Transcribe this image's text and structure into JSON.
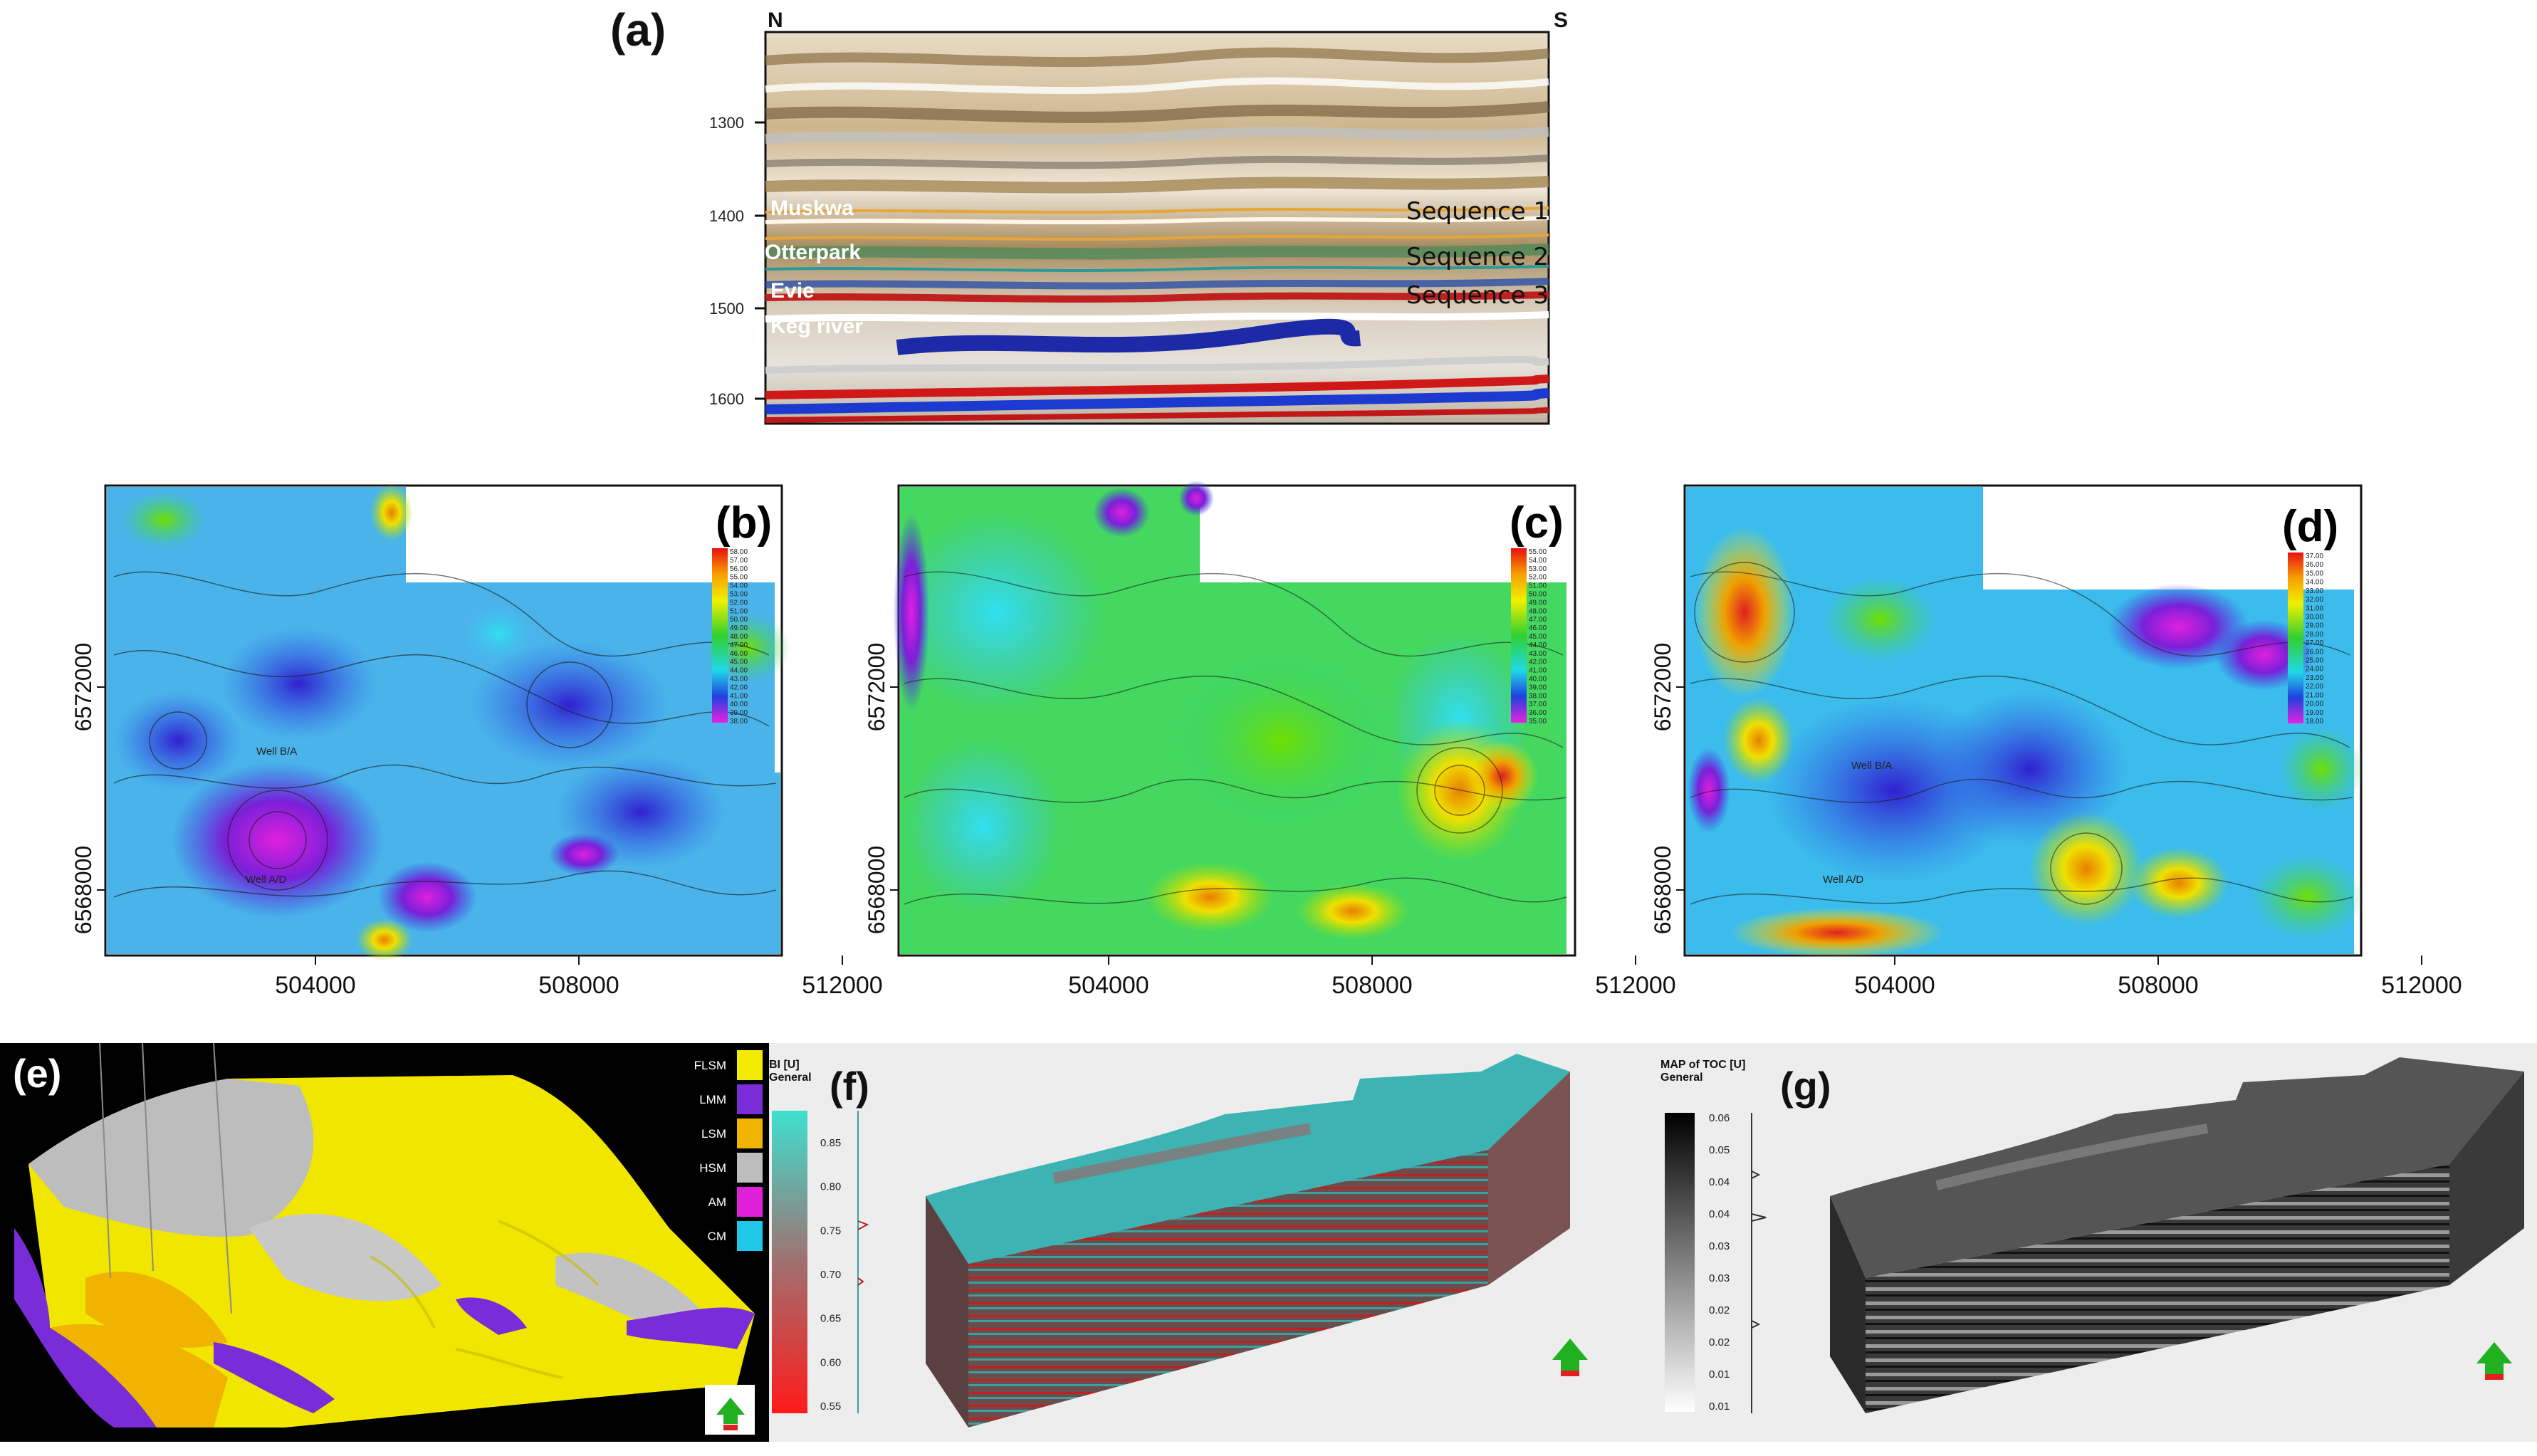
{
  "panel_a": {
    "label": "(a)",
    "north": "N",
    "south": "S",
    "depth_ticks": [
      "1300",
      "1400",
      "1500",
      "1600"
    ],
    "horizons": [
      "Muskwa",
      "Otterpark",
      "Evie",
      "Keg river"
    ],
    "sequences": [
      "Sequence 1",
      "Sequence 2",
      "Sequence 3"
    ]
  },
  "maps": {
    "x_ticks": [
      "504000",
      "508000",
      "512000"
    ],
    "y_ticks": [
      "6572000",
      "6568000"
    ],
    "panels": [
      {
        "label": "(b)",
        "scale": [
          "58.00",
          "57.00",
          "56.00",
          "55.00",
          "54.00",
          "53.00",
          "52.00",
          "51.00",
          "50.00",
          "49.00",
          "48.00",
          "47.00",
          "46.00",
          "45.00",
          "44.00",
          "43.00",
          "42.00",
          "41.00",
          "40.00",
          "39.00",
          "38.00"
        ],
        "wells": [
          "Well B/A",
          "Well A/D"
        ]
      },
      {
        "label": "(c)",
        "scale": [
          "55.00",
          "54.00",
          "53.00",
          "52.00",
          "51.00",
          "50.00",
          "49.00",
          "48.00",
          "47.00",
          "46.00",
          "45.00",
          "44.00",
          "43.00",
          "42.00",
          "41.00",
          "40.00",
          "39.00",
          "38.00",
          "37.00",
          "36.00",
          "35.00"
        ],
        "wells": []
      },
      {
        "label": "(d)",
        "scale": [
          "37.00",
          "36.00",
          "35.00",
          "34.00",
          "33.00",
          "32.00",
          "31.00",
          "30.00",
          "29.00",
          "28.00",
          "27.00",
          "26.00",
          "25.00",
          "24.00",
          "23.00",
          "22.00",
          "21.00",
          "20.00",
          "19.00",
          "18.00"
        ],
        "wells": [
          "Well B/A",
          "Well A/D"
        ]
      }
    ]
  },
  "panel_e": {
    "label": "(e)",
    "legend": [
      {
        "name": "FLSM",
        "color": "#f2ea00"
      },
      {
        "name": "LMM",
        "color": "#7a2cd9"
      },
      {
        "name": "LSM",
        "color": "#f0b400"
      },
      {
        "name": "HSM",
        "color": "#bdbdbd"
      },
      {
        "name": "AM",
        "color": "#e020d8"
      },
      {
        "name": "CM",
        "color": "#20c8e8"
      }
    ]
  },
  "panel_f": {
    "label": "(f)",
    "title1": "BI [U]",
    "title2": "General",
    "ticks": [
      "0.85",
      "0.80",
      "0.75",
      "0.70",
      "0.65",
      "0.60",
      "0.55"
    ]
  },
  "panel_g": {
    "label": "(g)",
    "title1": "MAP of TOC [U]",
    "title2": "General",
    "ticks": [
      "0.06",
      "0.05",
      "0.04",
      "0.04",
      "0.03",
      "0.03",
      "0.02",
      "0.02",
      "0.01",
      "0.01"
    ]
  }
}
